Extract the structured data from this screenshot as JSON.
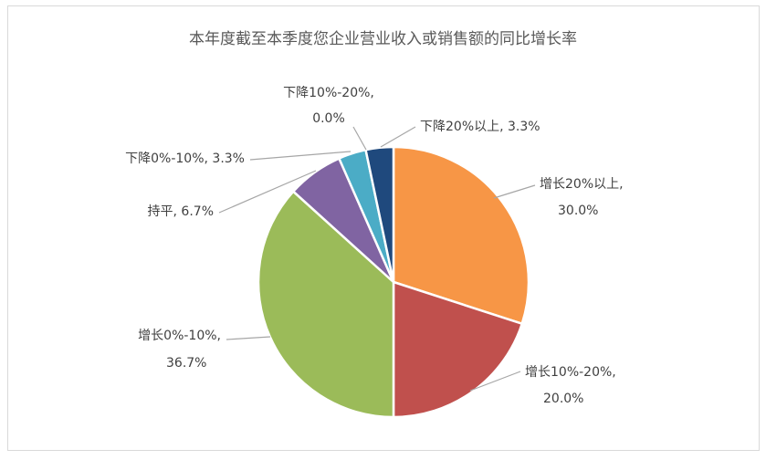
{
  "chart_data": {
    "type": "pie",
    "title": "本年度截至本季度您企业营业收入或销售额的同比增长率",
    "slices": [
      {
        "name": "增长20%以上",
        "value": 30.0,
        "label_line1": "增长20%以上,",
        "label_line2": "30.0%",
        "color": "#F79646"
      },
      {
        "name": "增长10%-20%",
        "value": 20.0,
        "label_line1": "增长10%-20%,",
        "label_line2": "20.0%",
        "color": "#C0504D"
      },
      {
        "name": "增长0%-10%",
        "value": 36.7,
        "label_line1": "增长0%-10%,",
        "label_line2": "36.7%",
        "color": "#9BBB59"
      },
      {
        "name": "持平",
        "value": 6.7,
        "label_line1": "持平, 6.7%",
        "label_line2": "",
        "color": "#8064A2"
      },
      {
        "name": "下降0%-10%",
        "value": 3.3,
        "label_line1": "下降0%-10%, 3.3%",
        "label_line2": "",
        "color": "#4BACC6"
      },
      {
        "name": "下降10%-20%",
        "value": 0.0,
        "label_line1": "下降10%-20%,",
        "label_line2": "0.0%",
        "color": "#4F81BD"
      },
      {
        "name": "下降20%以上",
        "value": 3.3,
        "label_line1": "下降20%以上, 3.3%",
        "label_line2": "",
        "color": "#1F497D"
      }
    ],
    "legend": "none",
    "start_angle_deg": 0,
    "direction": "clockwise"
  }
}
